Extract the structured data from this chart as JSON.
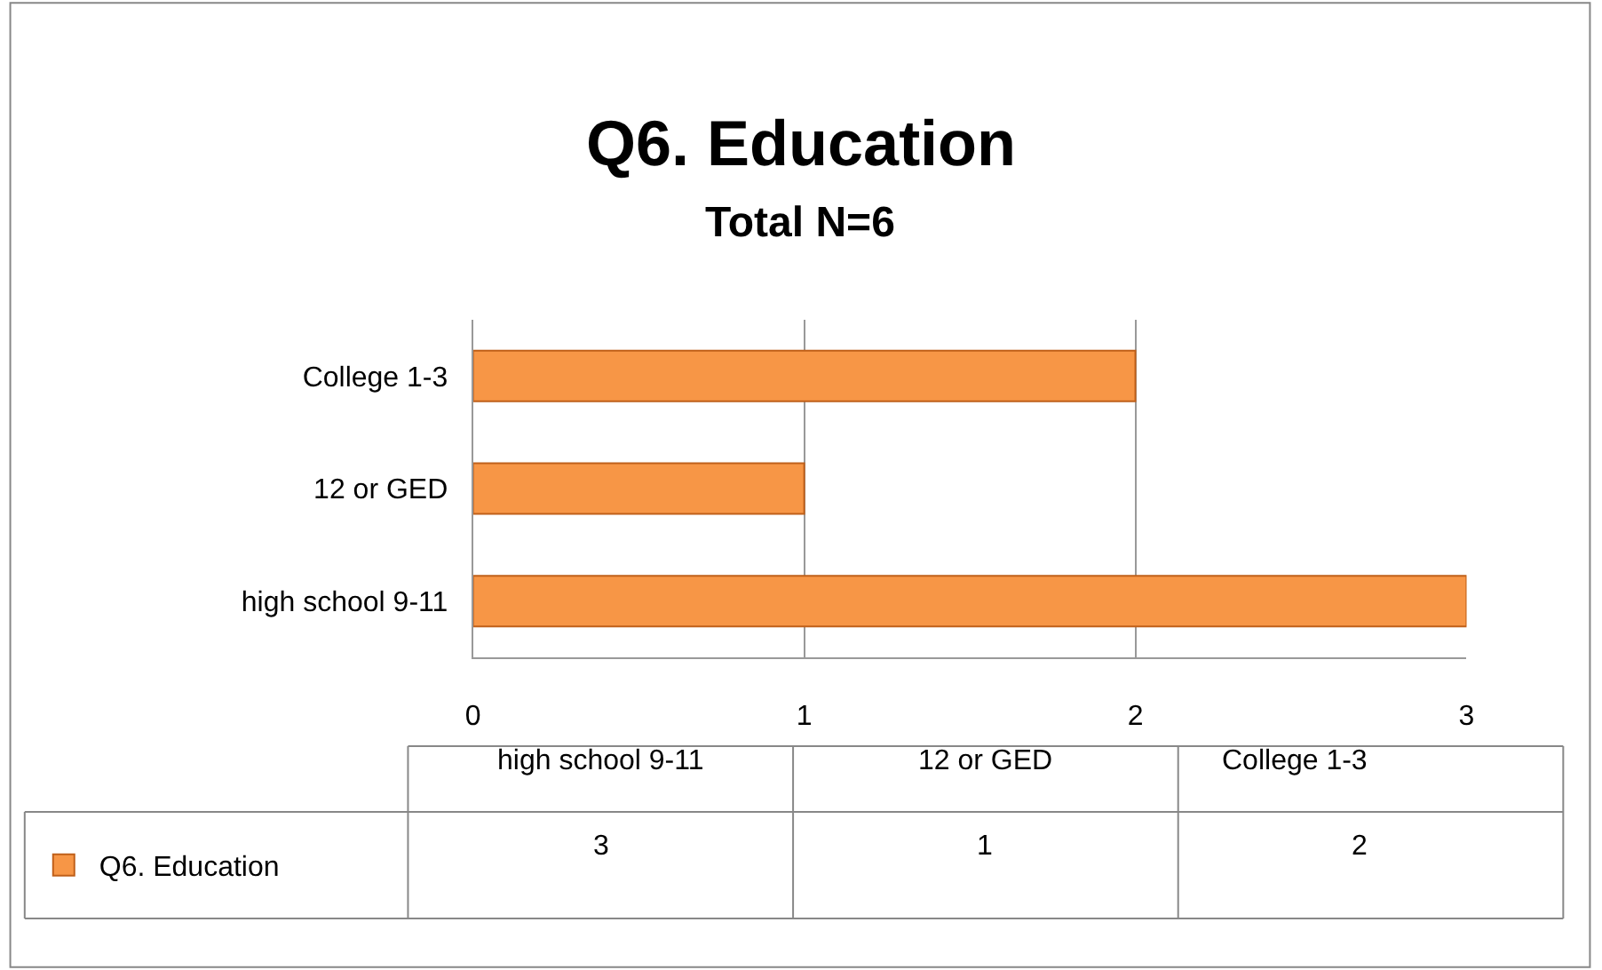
{
  "chart_data": {
    "type": "bar",
    "orientation": "horizontal",
    "title": "Q6. Education",
    "subtitle": "Total N=6",
    "categories": [
      "College 1-3",
      "12 or GED",
      "high school 9-11"
    ],
    "series": [
      {
        "name": "Q6. Education",
        "color": "#f79646",
        "values": [
          2,
          1,
          3
        ]
      }
    ],
    "annotations": [
      "3",
      "1",
      "2"
    ],
    "xlim": [
      0,
      3
    ],
    "xticks": [
      0,
      1,
      2,
      3
    ],
    "grid": "x",
    "legend": "bottom"
  }
}
